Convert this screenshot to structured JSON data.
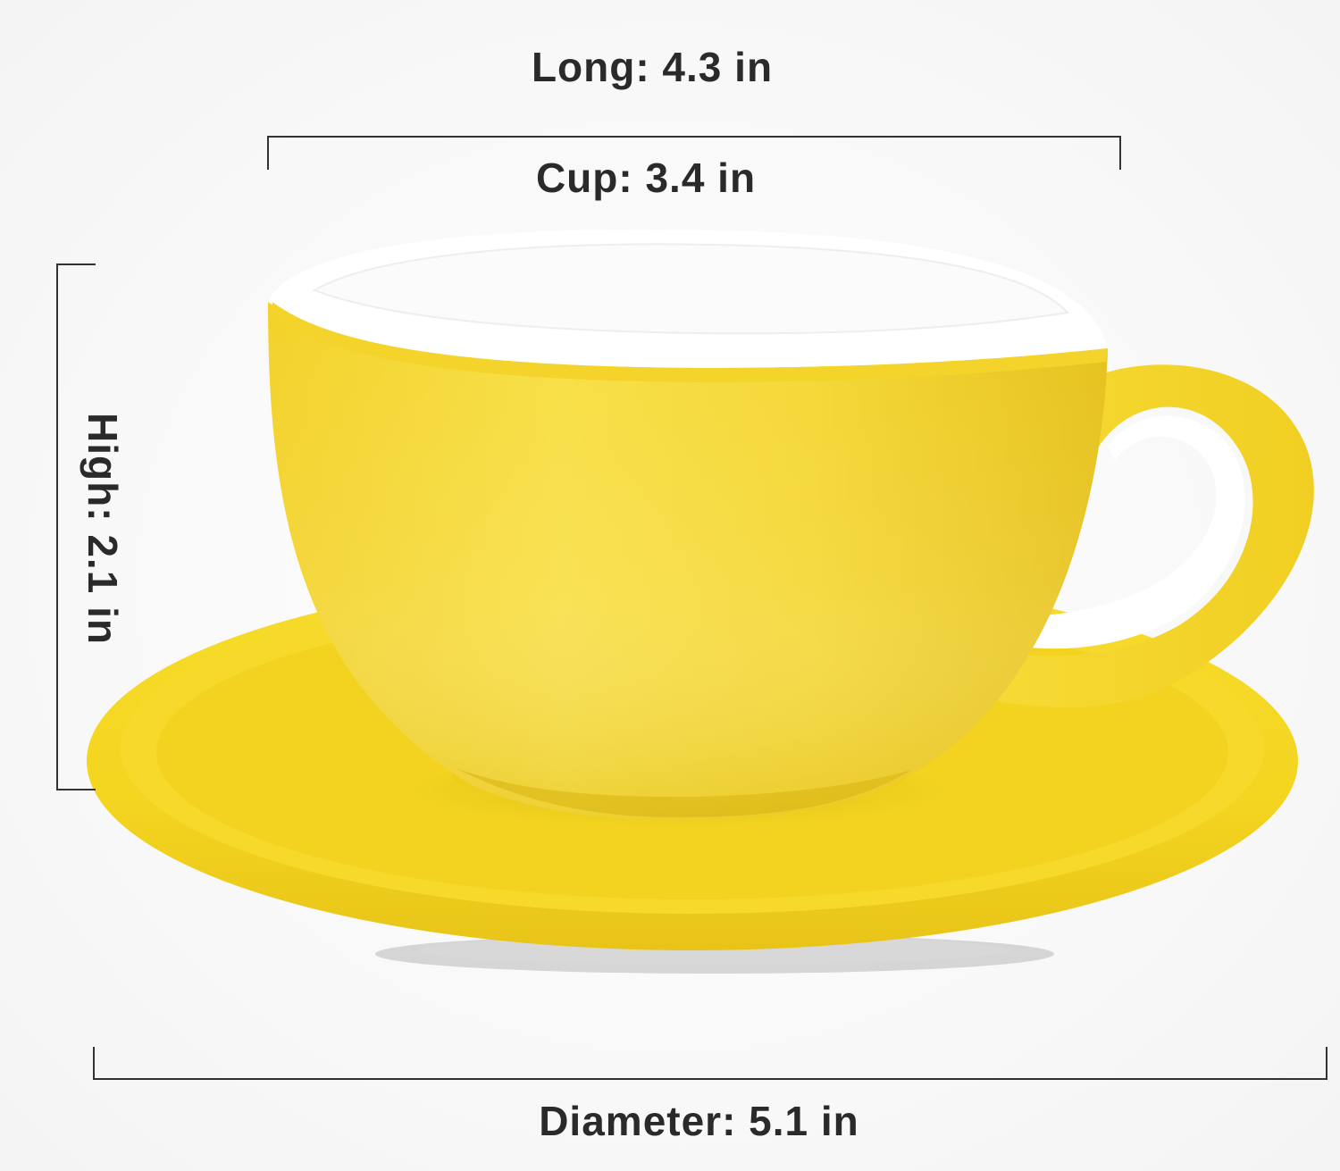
{
  "dimensions": {
    "long": "Long: 4.3 in",
    "cup": "Cup: 3.4 in",
    "high": "High: 2.1 in",
    "diameter": "Diameter: 5.1 in"
  },
  "colors": {
    "glaze_yellow": "#f5d626",
    "glaze_shadow": "#e9c51c",
    "interior_white": "#ffffff",
    "dimension_line": "#333333",
    "label_text": "#2a2a2a"
  }
}
